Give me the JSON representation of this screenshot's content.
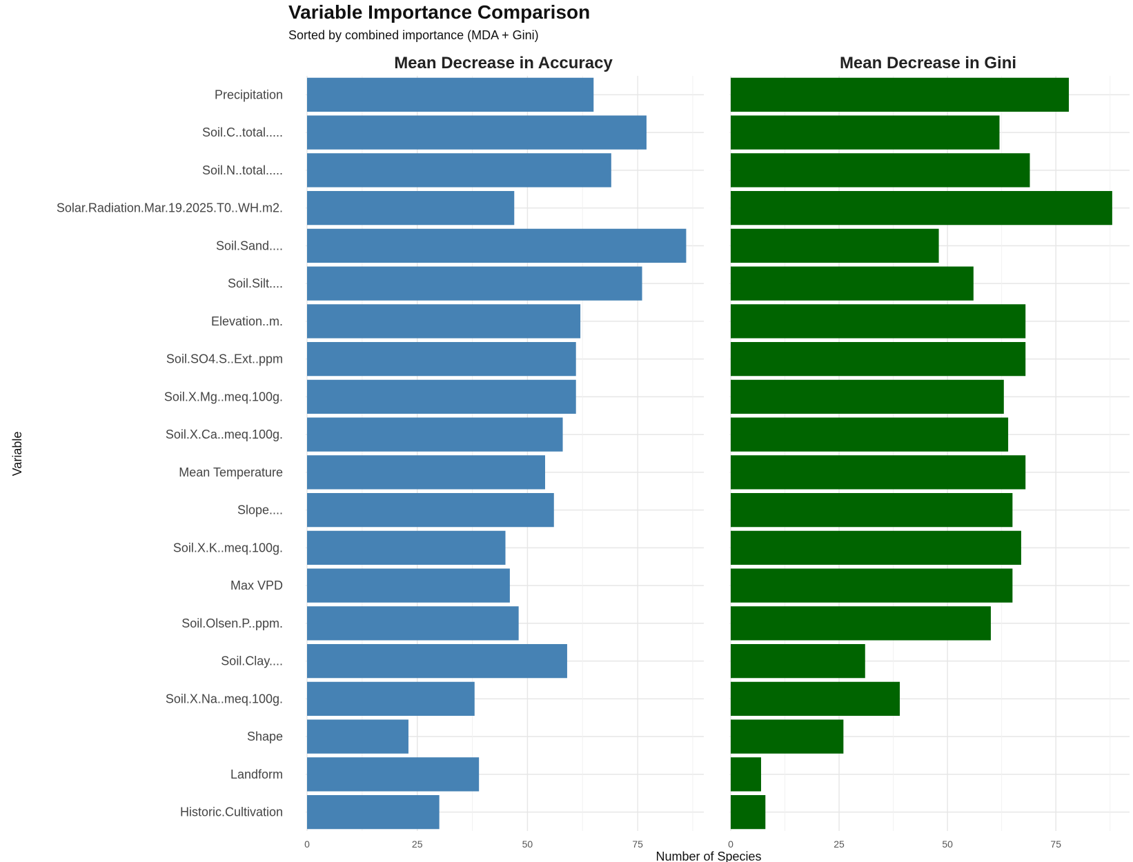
{
  "chart_data": {
    "type": "bar",
    "orientation": "horizontal",
    "title": "Variable Importance Comparison",
    "subtitle": "Sorted by combined importance (MDA + Gini)",
    "xlabel": "Number of Species",
    "ylabel": "Variable",
    "grid": true,
    "legend": "none",
    "categories": [
      "Precipitation",
      "Soil.C..total.....",
      "Soil.N..total.....",
      "Solar.Radiation.Mar.19.2025.T0..WH.m2.",
      "Soil.Sand....",
      "Soil.Silt....",
      "Elevation..m.",
      "Soil.SO4.S..Ext..ppm",
      "Soil.X.Mg..meq.100g.",
      "Soil.X.Ca..meq.100g.",
      "Mean Temperature",
      "Slope....",
      "Soil.X.K..meq.100g.",
      "Max VPD",
      "Soil.Olsen.P..ppm.",
      "Soil.Clay....",
      "Soil.X.Na..meq.100g.",
      "Shape",
      "Landform",
      "Historic.Cultivation"
    ],
    "panels": [
      {
        "title": "Mean Decrease in Accuracy",
        "color": "#4682B4",
        "xlim": [
          0,
          90
        ],
        "ticks": [
          0,
          25,
          50,
          75
        ],
        "values": [
          65,
          77,
          69,
          47,
          86,
          76,
          62,
          61,
          61,
          58,
          54,
          56,
          45,
          46,
          48,
          59,
          38,
          23,
          39,
          30
        ]
      },
      {
        "title": "Mean Decrease in Gini",
        "color": "#006400",
        "xlim": [
          0,
          92
        ],
        "ticks": [
          0,
          25,
          50,
          75
        ],
        "values": [
          78,
          62,
          69,
          88,
          48,
          56,
          68,
          68,
          63,
          64,
          68,
          65,
          67,
          65,
          60,
          31,
          39,
          26,
          7,
          8
        ]
      }
    ]
  }
}
